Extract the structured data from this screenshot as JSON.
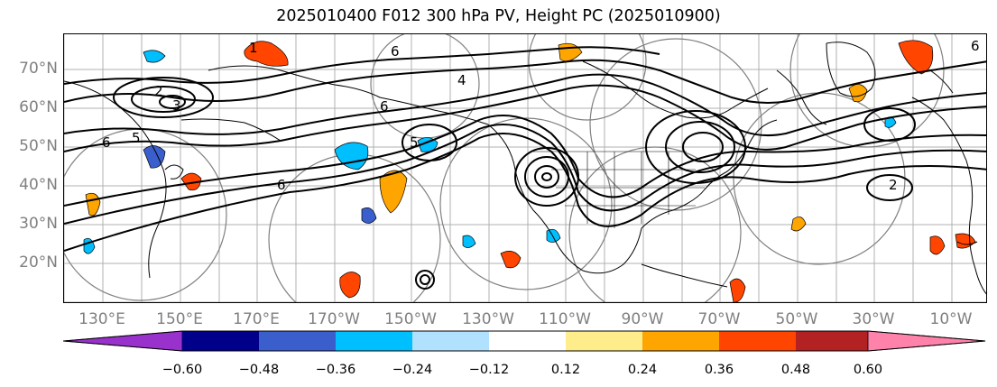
{
  "title": "2025010400 F012 300 hPa PV, Height PC (2025010900)",
  "map": {
    "lat_labels": [
      "70°N",
      "60°N",
      "50°N",
      "40°N",
      "30°N",
      "20°N"
    ],
    "lon_labels": [
      "130°E",
      "150°E",
      "170°E",
      "170°W",
      "150°W",
      "130°W",
      "110°W",
      "90°W",
      "70°W",
      "50°W",
      "30°W",
      "10°W"
    ],
    "contour_labels": [
      "1",
      "2",
      "3",
      "4",
      "5",
      "6"
    ],
    "line_color": "#000000",
    "circle_color": "#808080",
    "grid_color": "#b0b0b0"
  },
  "colorbar": {
    "colors": [
      "#9932cc",
      "#00008b",
      "#3a5fcd",
      "#00bfff",
      "#b0e2ff",
      "#ffffff",
      "#ffec8b",
      "#ffa500",
      "#ff4500",
      "#b22222",
      "#ff82ab"
    ],
    "tick_labels": [
      "−0.60",
      "−0.48",
      "−0.36",
      "−0.24",
      "−0.12",
      "0.12",
      "0.24",
      "0.36",
      "0.48",
      "0.60"
    ]
  }
}
